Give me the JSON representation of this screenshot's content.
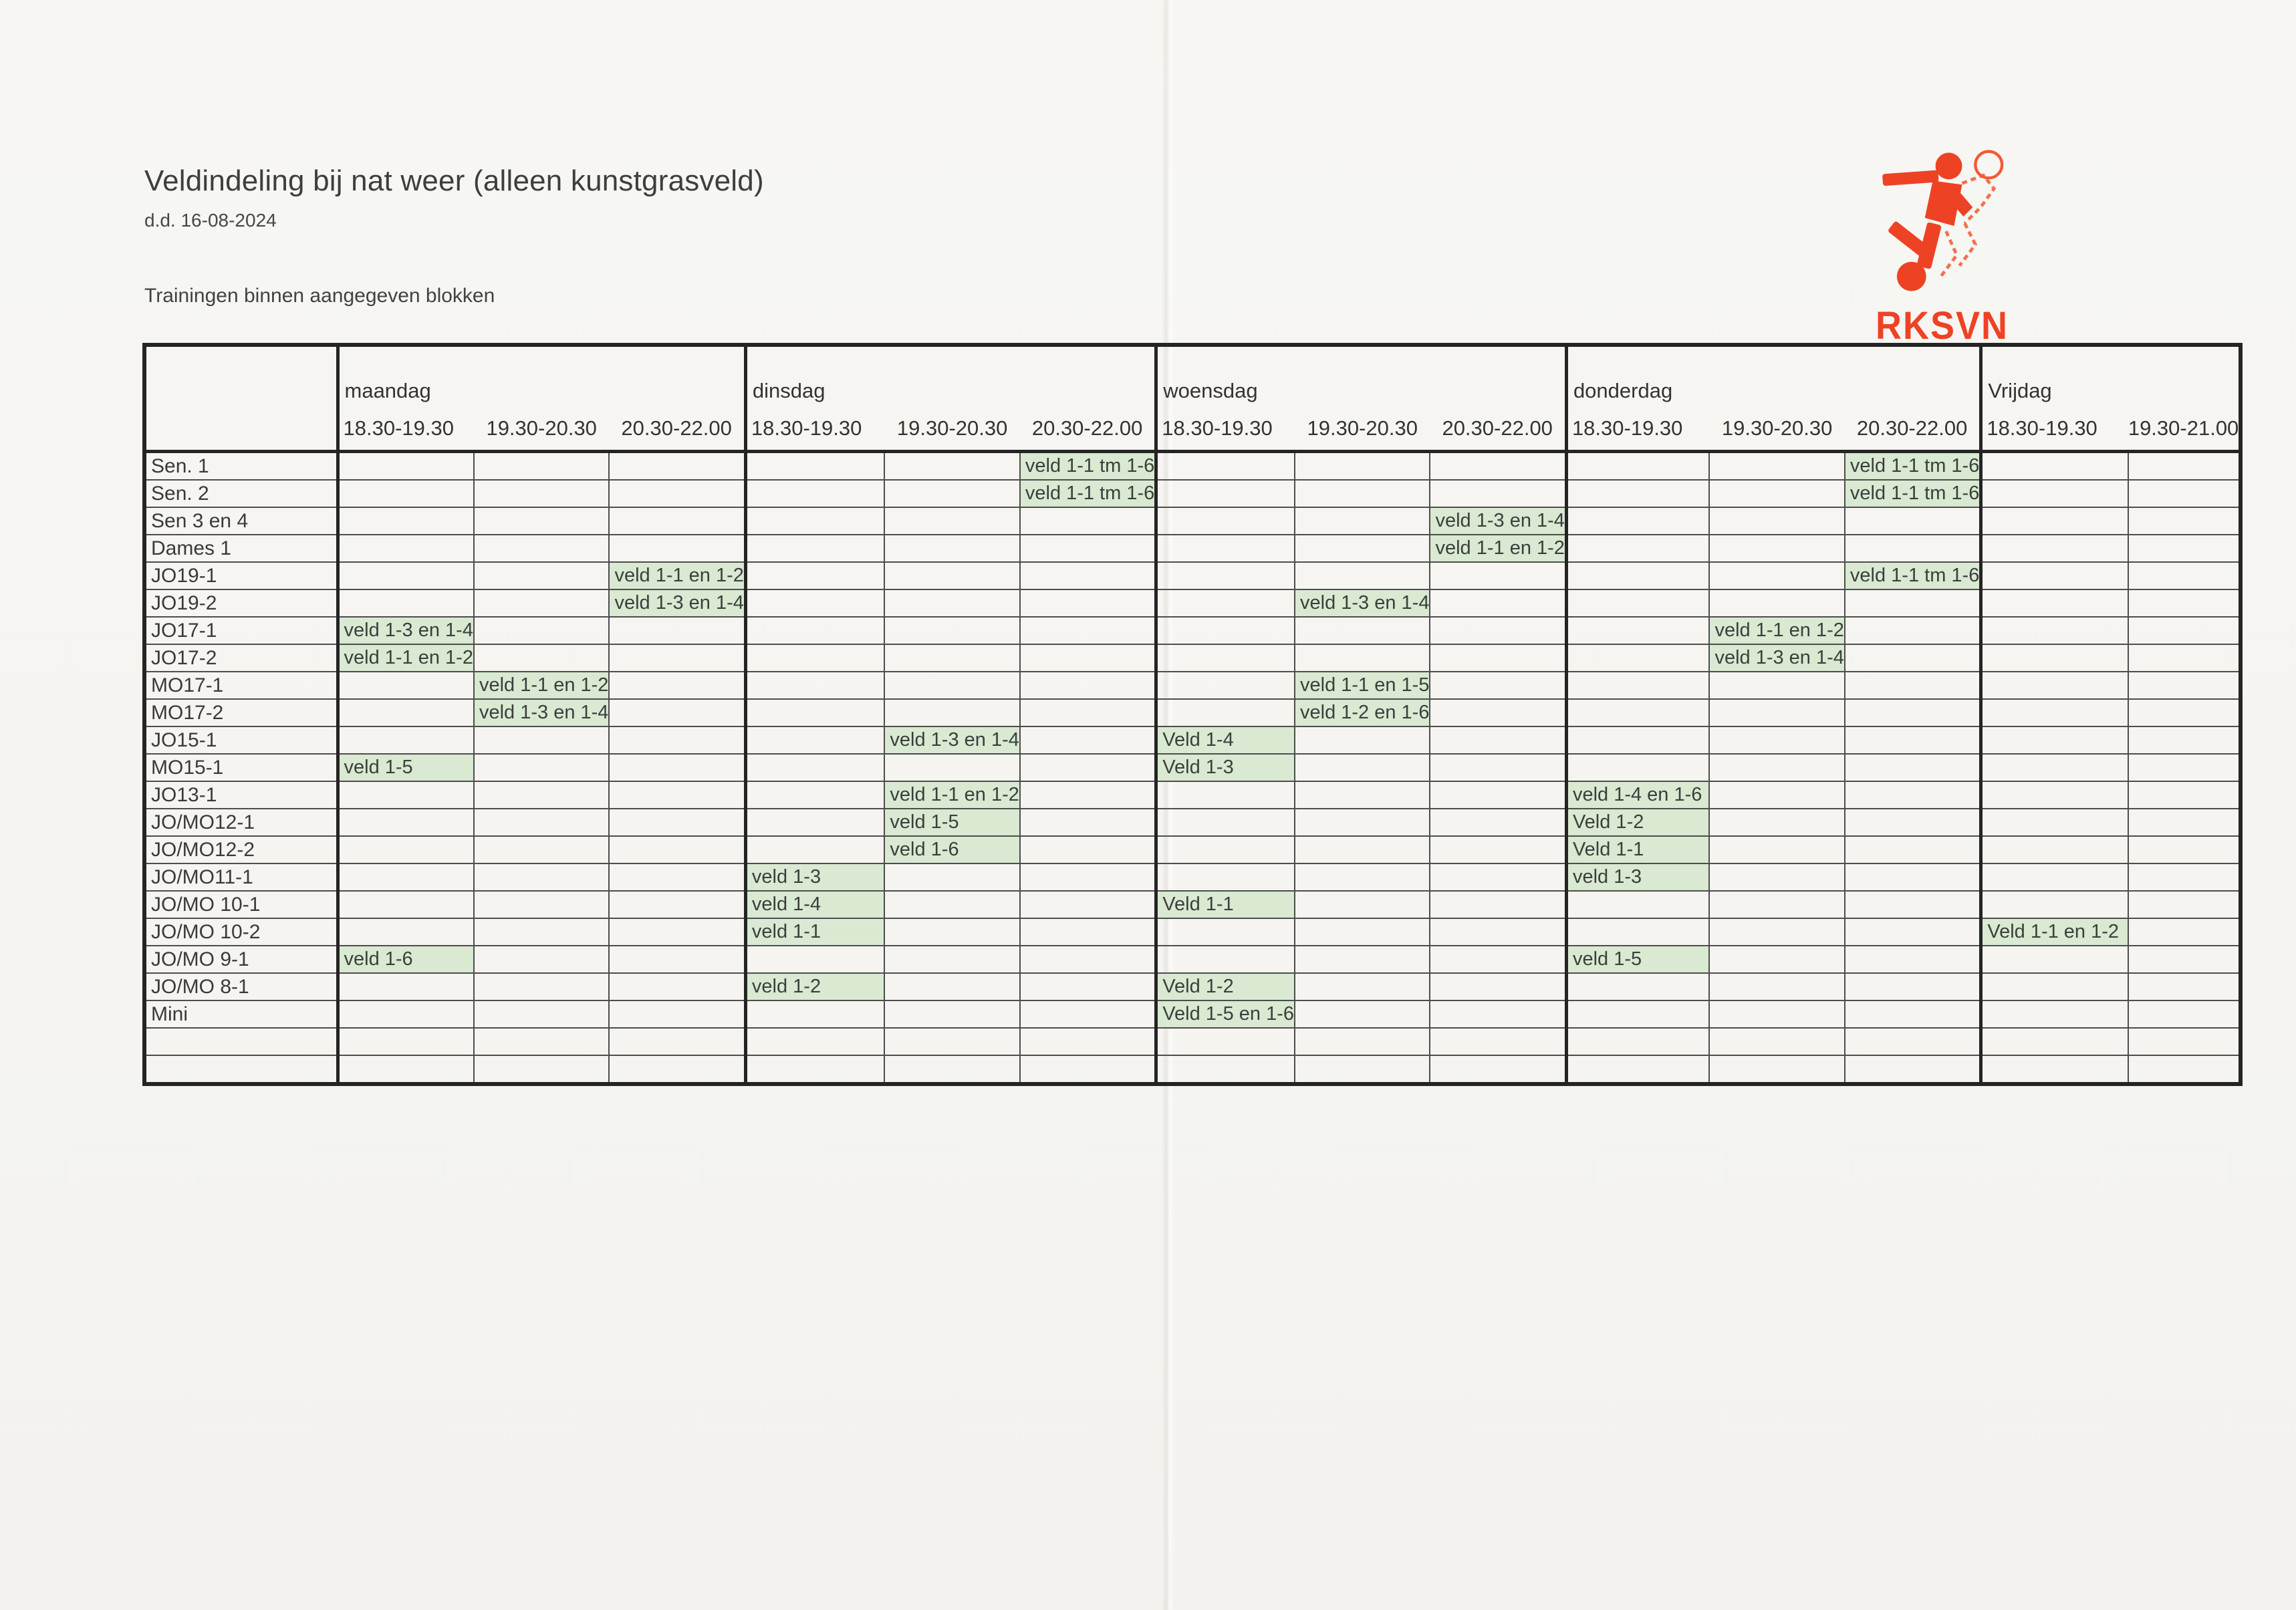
{
  "page": {
    "title": "Veldindeling bij nat weer (alleen kunstgrasveld)",
    "date": "d.d. 16-08-2024",
    "note": "Trainingen binnen aangegeven blokken"
  },
  "logo": {
    "club_name": "RKSVN",
    "icon": "soccer-player-icon",
    "accent_color": "#ee4224"
  },
  "colors": {
    "highlight_green": "#d9e9d2",
    "grid_thick": "#242424",
    "grid_thin": "#4d4d4d",
    "paper": "#f6f5f1"
  },
  "table": {
    "days": [
      {
        "label": "maandag",
        "slots": [
          "18.30-19.30",
          "19.30-20.30",
          "20.30-22.00"
        ]
      },
      {
        "label": "dinsdag",
        "slots": [
          "18.30-19.30",
          "19.30-20.30",
          "20.30-22.00"
        ]
      },
      {
        "label": "woensdag",
        "slots": [
          "18.30-19.30",
          "19.30-20.30",
          "20.30-22.00"
        ]
      },
      {
        "label": "donderdag",
        "slots": [
          "18.30-19.30",
          "19.30-20.30",
          "20.30-22.00"
        ]
      },
      {
        "label": "Vrijdag",
        "slots": [
          "18.30-19.30",
          "19.30-21.00"
        ]
      }
    ],
    "teams": [
      "Sen. 1",
      "Sen. 2",
      "Sen 3 en 4",
      "Dames 1",
      "JO19-1",
      "JO19-2",
      "JO17-1",
      "JO17-2",
      "MO17-1",
      "MO17-2",
      "JO15-1",
      "MO15-1",
      "JO13-1",
      "JO/MO12-1",
      "JO/MO12-2",
      "JO/MO11-1",
      "JO/MO 10-1",
      "JO/MO 10-2",
      "JO/MO 9-1",
      "JO/MO 8-1",
      "Mini"
    ],
    "total_rows": 23,
    "assignments": [
      {
        "team": "Sen. 1",
        "day": "dinsdag",
        "slot": 2,
        "text": "veld 1-1 tm 1-6"
      },
      {
        "team": "Sen. 1",
        "day": "donderdag",
        "slot": 2,
        "text": "veld 1-1 tm 1-6"
      },
      {
        "team": "Sen. 2",
        "day": "dinsdag",
        "slot": 2,
        "text": "veld 1-1 tm 1-6"
      },
      {
        "team": "Sen. 2",
        "day": "donderdag",
        "slot": 2,
        "text": "veld 1-1 tm 1-6"
      },
      {
        "team": "Sen 3 en 4",
        "day": "woensdag",
        "slot": 2,
        "text": "veld 1-3 en 1-4"
      },
      {
        "team": "Dames 1",
        "day": "woensdag",
        "slot": 2,
        "text": "veld 1-1 en 1-2"
      },
      {
        "team": "JO19-1",
        "day": "maandag",
        "slot": 2,
        "text": "veld 1-1 en 1-2"
      },
      {
        "team": "JO19-1",
        "day": "donderdag",
        "slot": 2,
        "text": "veld 1-1 tm 1-6"
      },
      {
        "team": "JO19-2",
        "day": "maandag",
        "slot": 2,
        "text": "veld 1-3 en 1-4"
      },
      {
        "team": "JO19-2",
        "day": "woensdag",
        "slot": 1,
        "text": "veld 1-3 en 1-4"
      },
      {
        "team": "JO17-1",
        "day": "maandag",
        "slot": 0,
        "text": "veld 1-3 en 1-4"
      },
      {
        "team": "JO17-1",
        "day": "donderdag",
        "slot": 1,
        "text": "veld 1-1 en 1-2"
      },
      {
        "team": "JO17-2",
        "day": "maandag",
        "slot": 0,
        "text": "veld 1-1 en 1-2"
      },
      {
        "team": "JO17-2",
        "day": "donderdag",
        "slot": 1,
        "text": "veld 1-3 en 1-4"
      },
      {
        "team": "MO17-1",
        "day": "maandag",
        "slot": 1,
        "text": "veld 1-1 en 1-2"
      },
      {
        "team": "MO17-1",
        "day": "woensdag",
        "slot": 1,
        "text": "veld 1-1 en 1-5"
      },
      {
        "team": "MO17-2",
        "day": "maandag",
        "slot": 1,
        "text": "veld 1-3 en 1-4"
      },
      {
        "team": "MO17-2",
        "day": "woensdag",
        "slot": 1,
        "text": "veld 1-2 en 1-6"
      },
      {
        "team": "JO15-1",
        "day": "dinsdag",
        "slot": 1,
        "text": "veld 1-3 en 1-4"
      },
      {
        "team": "JO15-1",
        "day": "woensdag",
        "slot": 0,
        "text": "Veld 1-4"
      },
      {
        "team": "MO15-1",
        "day": "maandag",
        "slot": 0,
        "text": "veld 1-5"
      },
      {
        "team": "MO15-1",
        "day": "woensdag",
        "slot": 0,
        "text": "Veld 1-3"
      },
      {
        "team": "JO13-1",
        "day": "dinsdag",
        "slot": 1,
        "text": "veld 1-1 en 1-2"
      },
      {
        "team": "JO13-1",
        "day": "donderdag",
        "slot": 0,
        "text": "veld 1-4 en 1-6"
      },
      {
        "team": "JO/MO12-1",
        "day": "dinsdag",
        "slot": 1,
        "text": "veld 1-5"
      },
      {
        "team": "JO/MO12-1",
        "day": "donderdag",
        "slot": 0,
        "text": "Veld 1-2"
      },
      {
        "team": "JO/MO12-2",
        "day": "dinsdag",
        "slot": 1,
        "text": "veld 1-6"
      },
      {
        "team": "JO/MO12-2",
        "day": "donderdag",
        "slot": 0,
        "text": "Veld 1-1"
      },
      {
        "team": "JO/MO11-1",
        "day": "dinsdag",
        "slot": 0,
        "text": "veld 1-3"
      },
      {
        "team": "JO/MO11-1",
        "day": "donderdag",
        "slot": 0,
        "text": "veld 1-3"
      },
      {
        "team": "JO/MO 10-1",
        "day": "dinsdag",
        "slot": 0,
        "text": "veld 1-4"
      },
      {
        "team": "JO/MO 10-1",
        "day": "woensdag",
        "slot": 0,
        "text": "Veld 1-1"
      },
      {
        "team": "JO/MO 10-2",
        "day": "dinsdag",
        "slot": 0,
        "text": "veld 1-1"
      },
      {
        "team": "JO/MO 10-2",
        "day": "Vrijdag",
        "slot": 0,
        "text": "Veld 1-1 en 1-2"
      },
      {
        "team": "JO/MO 9-1",
        "day": "maandag",
        "slot": 0,
        "text": "veld 1-6"
      },
      {
        "team": "JO/MO 9-1",
        "day": "donderdag",
        "slot": 0,
        "text": "veld 1-5"
      },
      {
        "team": "JO/MO 8-1",
        "day": "dinsdag",
        "slot": 0,
        "text": "veld 1-2"
      },
      {
        "team": "JO/MO 8-1",
        "day": "woensdag",
        "slot": 0,
        "text": "Veld 1-2"
      },
      {
        "team": "Mini",
        "day": "woensdag",
        "slot": 0,
        "text": "Veld 1-5 en 1-6"
      }
    ]
  }
}
